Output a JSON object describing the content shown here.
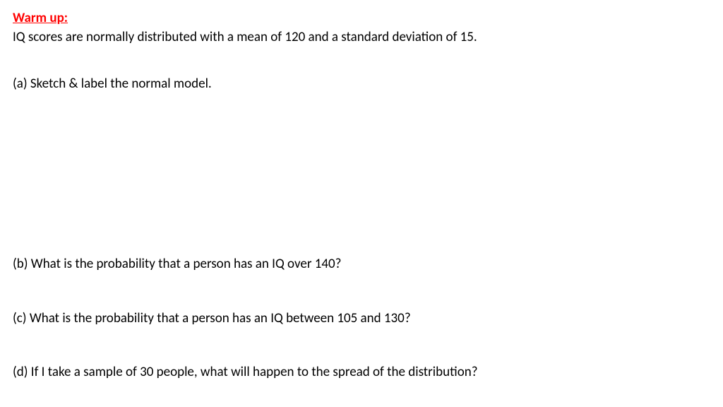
{
  "heading": "Warm up:",
  "intro": "IQ scores are normally distributed with a mean of 120 and a standard deviation of 15.",
  "questions": {
    "a": "(a) Sketch & label the normal model.",
    "b": "(b) What is the probability that a person has an IQ over 140?",
    "c": "(c) What is the probability that a person has an IQ between 105 and 130?",
    "d": "(d) If I take a sample of 30 people, what will happen to the spread of the distribution?"
  },
  "colors": {
    "heading_color": "#ff0000",
    "text_color": "#000000",
    "background_color": "#ffffff"
  },
  "typography": {
    "font_family": "Calibri",
    "body_fontsize": 19,
    "heading_fontsize": 19,
    "heading_weight": "bold",
    "heading_underline": true
  }
}
